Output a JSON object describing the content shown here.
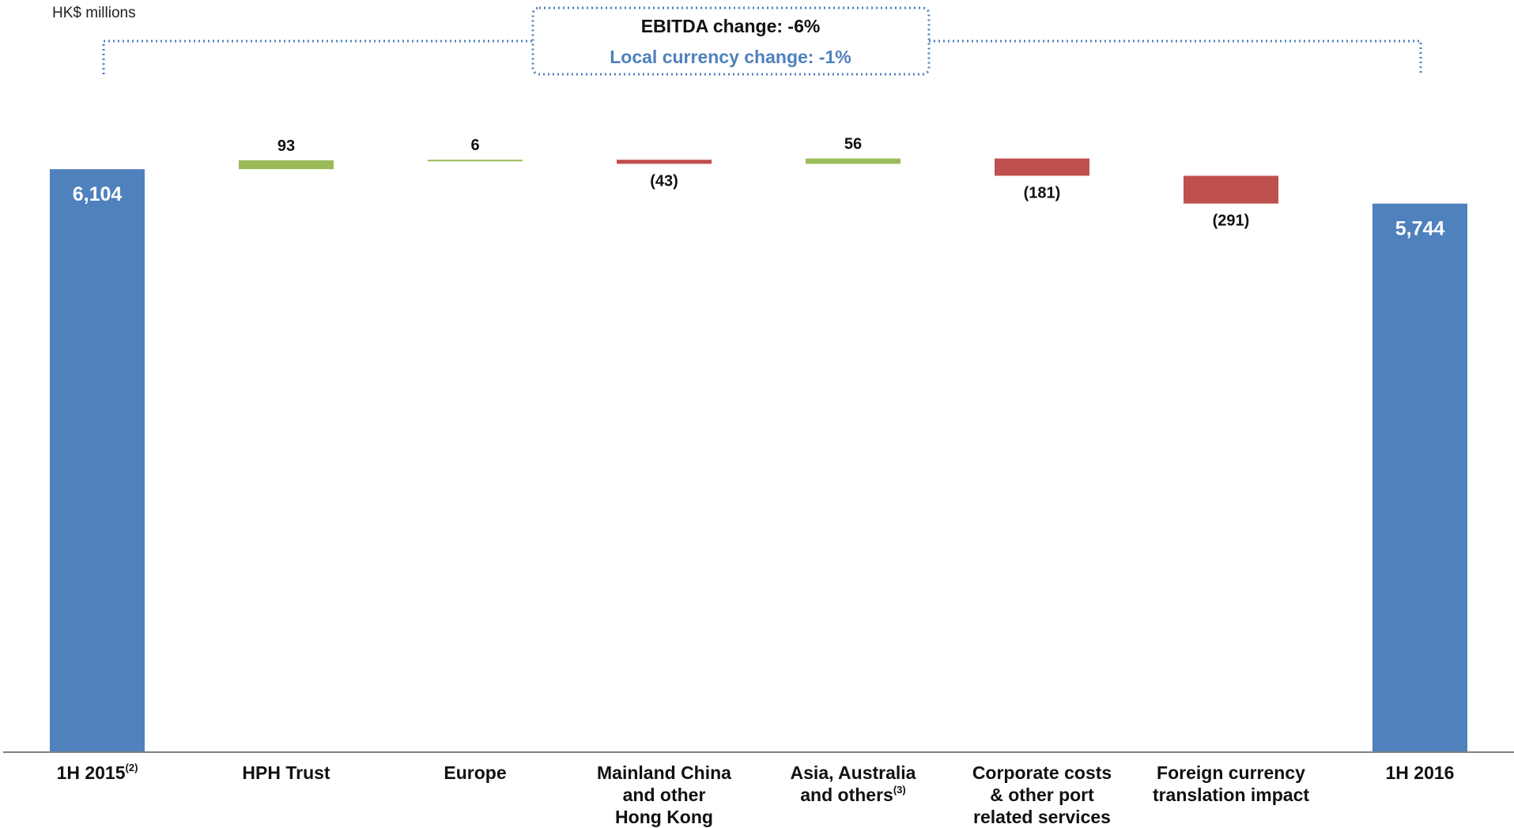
{
  "chart_data": {
    "type": "bar",
    "subtype": "waterfall",
    "ylabel": "HK$ millions",
    "callout": {
      "main": "EBITDA change: -6%",
      "sub": "Local currency change: -1%"
    },
    "categories": [
      {
        "lines": [
          "1H 2015"
        ],
        "sup": "(2)"
      },
      {
        "lines": [
          "HPH Trust"
        ],
        "sup": ""
      },
      {
        "lines": [
          "Europe"
        ],
        "sup": ""
      },
      {
        "lines": [
          "Mainland China",
          "and other",
          "Hong Kong"
        ],
        "sup": ""
      },
      {
        "lines": [
          "Asia, Australia",
          "and others"
        ],
        "sup": "(3)"
      },
      {
        "lines": [
          "Corporate costs",
          "& other port",
          "related services"
        ],
        "sup": ""
      },
      {
        "lines": [
          "Foreign currency",
          "translation impact"
        ],
        "sup": ""
      },
      {
        "lines": [
          "1H 2016"
        ],
        "sup": ""
      }
    ],
    "values": [
      6104,
      93,
      6,
      -43,
      56,
      -181,
      -291,
      5744
    ],
    "kinds": [
      "total",
      "delta",
      "delta",
      "delta",
      "delta",
      "delta",
      "delta",
      "total"
    ],
    "labels": [
      "6,104",
      "93",
      "6",
      "(43)",
      "56",
      "(181)",
      "(291)",
      "5,744"
    ],
    "ylim": [
      0,
      6800
    ],
    "colors": {
      "total": "#4f81bd",
      "increase": "#9bbb59",
      "decrease": "#c0504d",
      "hatch": "#4f81bd",
      "axis": "#7f7f7f",
      "bracket": "#4f81bd"
    }
  }
}
